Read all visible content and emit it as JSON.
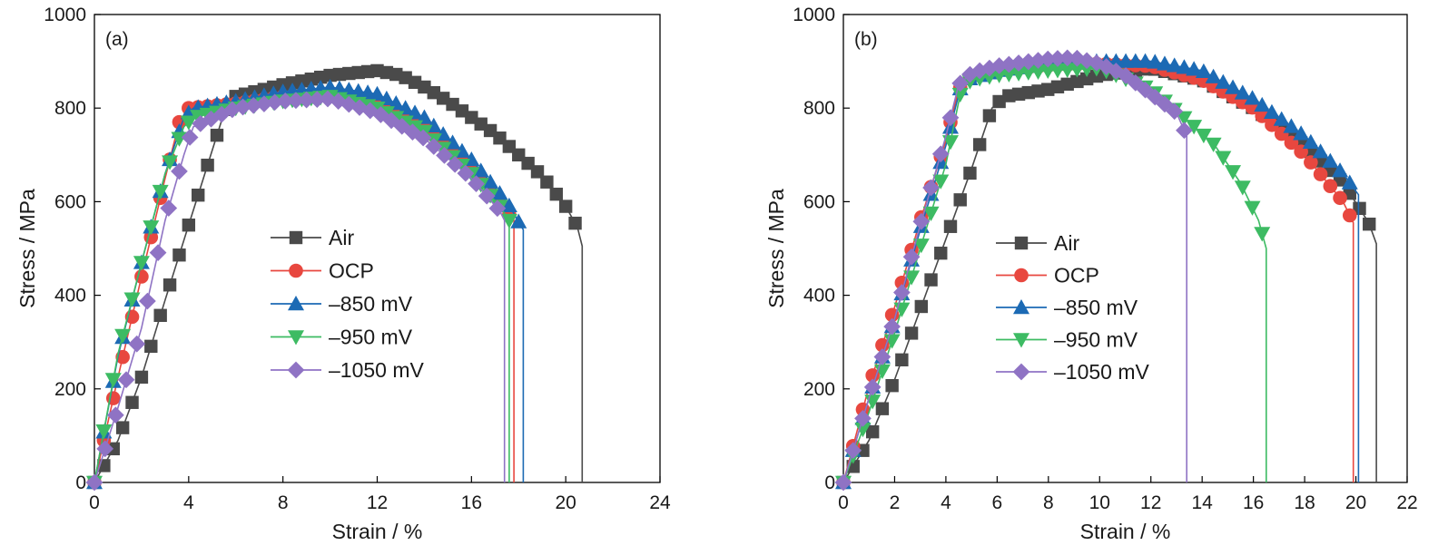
{
  "figure": {
    "panel_count": 2
  },
  "chart_data": [
    {
      "type": "line",
      "panel_label": "(a)",
      "xlabel": "Strain / %",
      "ylabel": "Stress / MPa",
      "xlim": [
        0,
        24
      ],
      "ylim": [
        0,
        1000
      ],
      "xticks": [
        0,
        4,
        8,
        12,
        16,
        20,
        24
      ],
      "yticks": [
        0,
        200,
        400,
        600,
        800,
        1000
      ],
      "xtick_labels": [
        "0",
        "4",
        "8",
        "12",
        "16",
        "20",
        "24"
      ],
      "ytick_labels": [
        "0",
        "200",
        "400",
        "600",
        "800",
        "1000"
      ],
      "grid": false,
      "legend_position": "center",
      "series": [
        {
          "name": "Air",
          "color": "#4a4a4a",
          "marker": "square",
          "marker_every": 0.4,
          "points": [
            [
              0,
              0
            ],
            [
              1,
              90
            ],
            [
              2,
              225
            ],
            [
              3,
              390
            ],
            [
              4,
              550
            ],
            [
              5,
              710
            ],
            [
              5.5,
              790
            ],
            [
              6,
              825
            ],
            [
              8,
              850
            ],
            [
              10,
              870
            ],
            [
              12,
              880
            ],
            [
              13,
              870
            ],
            [
              14,
              845
            ],
            [
              15,
              815
            ],
            [
              16,
              780
            ],
            [
              17,
              745
            ],
            [
              18,
              700
            ],
            [
              19,
              655
            ],
            [
              20,
              590
            ],
            [
              20.5,
              545
            ],
            [
              20.7,
              505
            ],
            [
              20.7,
              0
            ]
          ]
        },
        {
          "name": "OCP",
          "color": "#e8473f",
          "marker": "circle",
          "marker_every": 0.4,
          "points": [
            [
              0,
              0
            ],
            [
              1,
              225
            ],
            [
              2,
              440
            ],
            [
              3,
              650
            ],
            [
              3.6,
              770
            ],
            [
              4,
              800
            ],
            [
              6,
              810
            ],
            [
              8,
              825
            ],
            [
              10,
              830
            ],
            [
              12,
              810
            ],
            [
              14,
              760
            ],
            [
              16,
              670
            ],
            [
              17,
              610
            ],
            [
              17.8,
              560
            ],
            [
              17.8,
              0
            ]
          ]
        },
        {
          "name": "–850 mV",
          "color": "#1c6ab4",
          "marker": "triangle-up",
          "marker_every": 0.4,
          "points": [
            [
              0,
              0
            ],
            [
              1,
              270
            ],
            [
              2,
              470
            ],
            [
              3,
              660
            ],
            [
              3.8,
              780
            ],
            [
              4.2,
              800
            ],
            [
              6,
              815
            ],
            [
              8,
              835
            ],
            [
              10,
              845
            ],
            [
              12,
              830
            ],
            [
              14,
              780
            ],
            [
              16,
              690
            ],
            [
              17.5,
              600
            ],
            [
              18.2,
              540
            ],
            [
              18.2,
              0
            ]
          ]
        },
        {
          "name": "–950 mV",
          "color": "#3dbb63",
          "marker": "triangle-down",
          "marker_every": 0.4,
          "points": [
            [
              0,
              0
            ],
            [
              1,
              275
            ],
            [
              2,
              470
            ],
            [
              3,
              660
            ],
            [
              3.8,
              760
            ],
            [
              4.2,
              780
            ],
            [
              6,
              800
            ],
            [
              8,
              815
            ],
            [
              10,
              825
            ],
            [
              12,
              800
            ],
            [
              14,
              750
            ],
            [
              16,
              660
            ],
            [
              17.2,
              590
            ],
            [
              17.6,
              560
            ],
            [
              17.6,
              0
            ]
          ]
        },
        {
          "name": "–1050 mV",
          "color": "#8f73c4",
          "marker": "diamond",
          "marker_every": 0.45,
          "points": [
            [
              0,
              0
            ],
            [
              1,
              160
            ],
            [
              2,
              330
            ],
            [
              3,
              560
            ],
            [
              3.8,
              700
            ],
            [
              4.2,
              760
            ],
            [
              6,
              800
            ],
            [
              8,
              815
            ],
            [
              10,
              820
            ],
            [
              12,
              790
            ],
            [
              14,
              735
            ],
            [
              16,
              650
            ],
            [
              17.2,
              580
            ],
            [
              17.4,
              560
            ],
            [
              17.4,
              0
            ]
          ]
        }
      ]
    },
    {
      "type": "line",
      "panel_label": "(b)",
      "xlabel": "Strain / %",
      "ylabel": "Stress / MPa",
      "xlim": [
        0,
        22
      ],
      "ylim": [
        0,
        1000
      ],
      "xticks": [
        0,
        2,
        4,
        6,
        8,
        10,
        12,
        14,
        16,
        18,
        20,
        22
      ],
      "yticks": [
        0,
        200,
        400,
        600,
        800,
        1000
      ],
      "xtick_labels": [
        "0",
        "2",
        "4",
        "6",
        "8",
        "10",
        "12",
        "14",
        "16",
        "18",
        "20",
        "22"
      ],
      "ytick_labels": [
        "0",
        "200",
        "400",
        "600",
        "800",
        "1000"
      ],
      "grid": false,
      "legend_position": "center-left",
      "series": [
        {
          "name": "Air",
          "color": "#4a4a4a",
          "marker": "square",
          "marker_every": 0.38,
          "points": [
            [
              0,
              0
            ],
            [
              1,
              90
            ],
            [
              2,
              220
            ],
            [
              3,
              370
            ],
            [
              4,
              520
            ],
            [
              5,
              670
            ],
            [
              5.8,
              800
            ],
            [
              6.3,
              825
            ],
            [
              8,
              840
            ],
            [
              10,
              870
            ],
            [
              12,
              885
            ],
            [
              14,
              860
            ],
            [
              16,
              800
            ],
            [
              18,
              720
            ],
            [
              19.5,
              640
            ],
            [
              20.5,
              555
            ],
            [
              20.8,
              510
            ],
            [
              20.8,
              0
            ]
          ]
        },
        {
          "name": "OCP",
          "color": "#e8473f",
          "marker": "circle",
          "marker_every": 0.38,
          "points": [
            [
              0,
              0
            ],
            [
              1,
              205
            ],
            [
              2,
              375
            ],
            [
              3,
              560
            ],
            [
              4,
              730
            ],
            [
              4.5,
              840
            ],
            [
              5,
              870
            ],
            [
              6,
              880
            ],
            [
              8,
              890
            ],
            [
              10,
              895
            ],
            [
              12,
              890
            ],
            [
              14,
              860
            ],
            [
              16,
              800
            ],
            [
              18,
              700
            ],
            [
              19.5,
              600
            ],
            [
              19.9,
              555
            ],
            [
              19.9,
              0
            ]
          ]
        },
        {
          "name": "–850 mV",
          "color": "#1c6ab4",
          "marker": "triangle-up",
          "marker_every": 0.38,
          "points": [
            [
              0,
              0
            ],
            [
              1,
              180
            ],
            [
              2,
              350
            ],
            [
              3,
              540
            ],
            [
              4,
              720
            ],
            [
              4.6,
              850
            ],
            [
              5,
              865
            ],
            [
              6,
              880
            ],
            [
              8,
              895
            ],
            [
              10,
              900
            ],
            [
              12,
              900
            ],
            [
              14,
              880
            ],
            [
              16,
              820
            ],
            [
              18,
              740
            ],
            [
              19.5,
              660
            ],
            [
              20.1,
              615
            ],
            [
              20.1,
              0
            ]
          ]
        },
        {
          "name": "–950 mV",
          "color": "#3dbb63",
          "marker": "triangle-down",
          "marker_every": 0.38,
          "points": [
            [
              0,
              0
            ],
            [
              1,
              150
            ],
            [
              2,
              320
            ],
            [
              3,
              500
            ],
            [
              4,
              680
            ],
            [
              4.6,
              840
            ],
            [
              5,
              860
            ],
            [
              6,
              870
            ],
            [
              8,
              880
            ],
            [
              10,
              885
            ],
            [
              12,
              840
            ],
            [
              13.5,
              770
            ],
            [
              14.5,
              720
            ],
            [
              15.5,
              640
            ],
            [
              16.2,
              560
            ],
            [
              16.5,
              500
            ],
            [
              16.5,
              0
            ]
          ]
        },
        {
          "name": "–1050 mV",
          "color": "#8f73c4",
          "marker": "diamond",
          "marker_every": 0.38,
          "points": [
            [
              0,
              0
            ],
            [
              1,
              180
            ],
            [
              2,
              350
            ],
            [
              3,
              550
            ],
            [
              4,
              740
            ],
            [
              4.5,
              850
            ],
            [
              5,
              875
            ],
            [
              6,
              890
            ],
            [
              8,
              905
            ],
            [
              9,
              908
            ],
            [
              10,
              895
            ],
            [
              11,
              870
            ],
            [
              12,
              830
            ],
            [
              13,
              790
            ],
            [
              13.4,
              740
            ],
            [
              13.4,
              0
            ]
          ]
        }
      ]
    }
  ]
}
